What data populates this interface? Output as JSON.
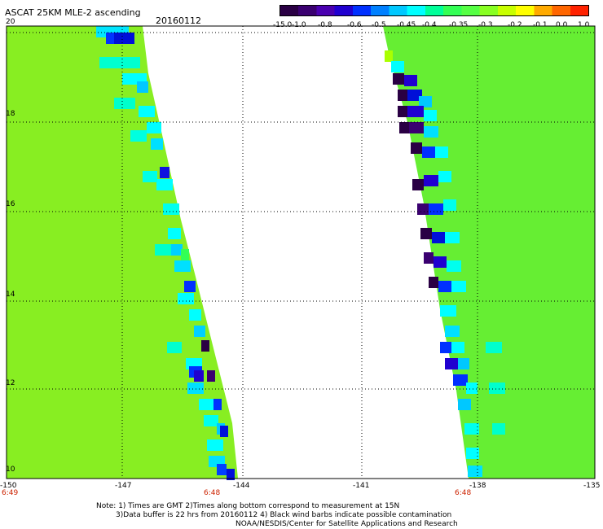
{
  "header": {
    "title": "ASCAT 25KM MLE-2 ascending",
    "date": "20160112"
  },
  "colorbar": {
    "colors": [
      "#2a0044",
      "#3a0070",
      "#4a00b0",
      "#2000d0",
      "#0030ff",
      "#0080ff",
      "#00c8ff",
      "#00ffff",
      "#00ff99",
      "#33ff55",
      "#55ff44",
      "#88ff22",
      "#c8ff00",
      "#ffff00",
      "#ffaa00",
      "#ff6600",
      "#ff2200"
    ],
    "labels": [
      "-15.0",
      "-1.0",
      "-0.8",
      "-0.6",
      "-0.5",
      "-0.45",
      "-0.4",
      "-0.35",
      "-0.3",
      "-0.2",
      "-0.1",
      "0.0",
      "1.0"
    ]
  },
  "axes": {
    "y_ticks": [
      "20",
      "18",
      "16",
      "14",
      "12",
      "10"
    ],
    "x_ticks": [
      "-150",
      "-147",
      "-144",
      "-141",
      "-138",
      "-135"
    ]
  },
  "times": [
    "6:49",
    "6:48",
    "6:48"
  ],
  "notes": [
    "Note: 1) Times are GMT 2)Times along bottom correspond to measurement at 15N",
    "3)Data buffer is 22 hrs from 20160112 4) Black wind barbs indicate possible contamination",
    "NOAA/NESDIS/Center for Satellite Applications and Research"
  ],
  "map": {
    "background_left": "#88ee22",
    "background_right": "#66ee33",
    "gap_color": "#ffffff"
  }
}
